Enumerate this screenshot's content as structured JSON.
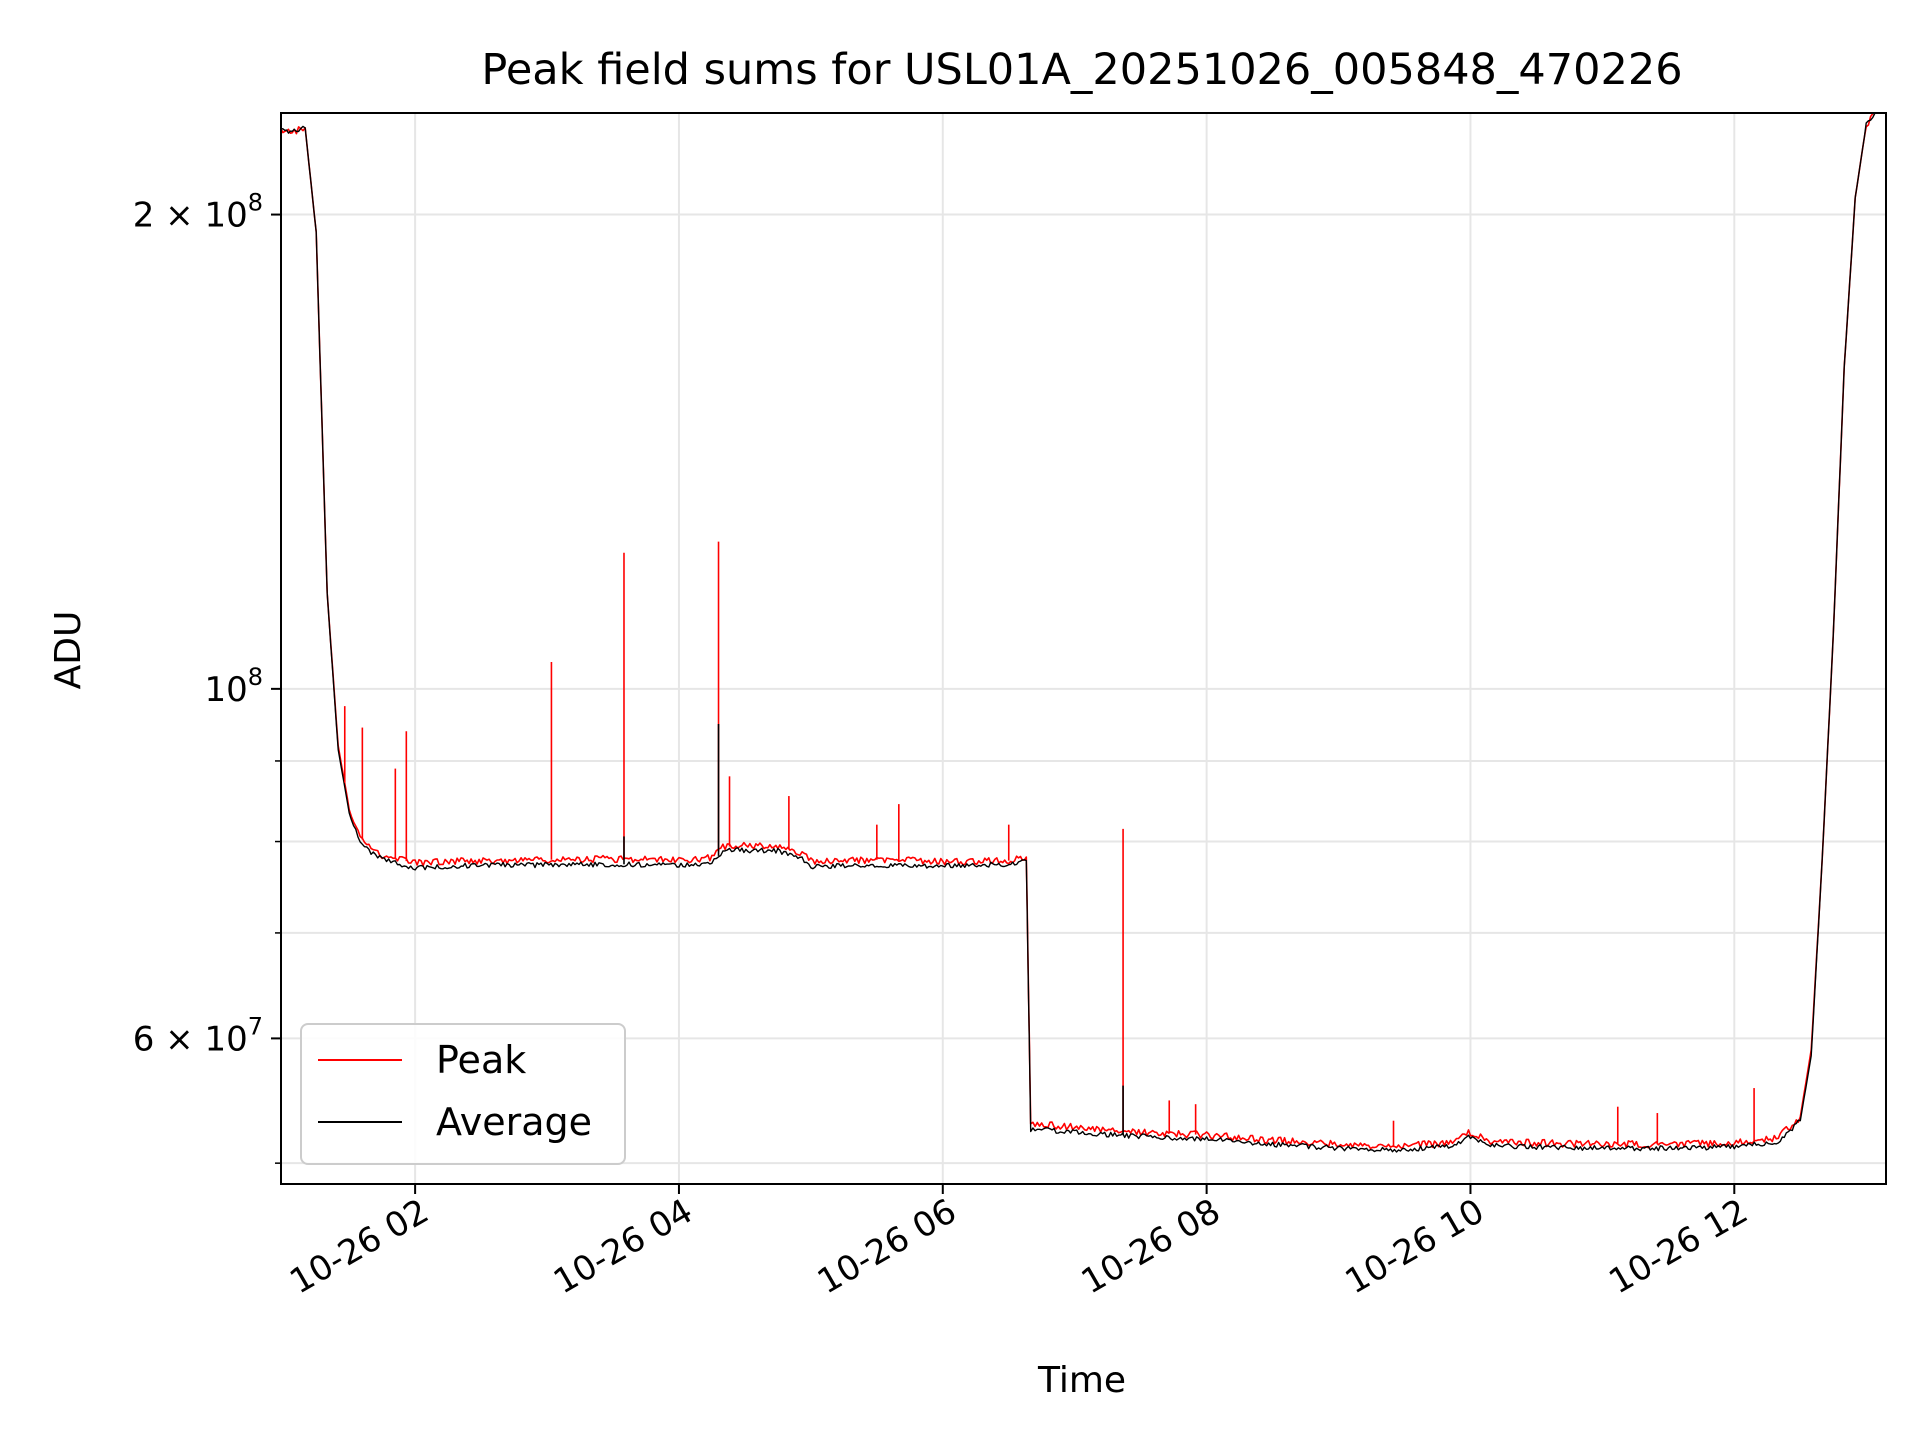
{
  "chart_data": {
    "type": "line",
    "title": "Peak field sums for USL01A_20251026_005848_470226",
    "xlabel": "Time",
    "ylabel": "ADU",
    "x_axis": {
      "kind": "datetime",
      "range": [
        "2025-10-26 00:59",
        "2025-10-26 13:09"
      ],
      "tick_format": "MM-DD HH"
    },
    "y_axis": {
      "scale": "log",
      "range": [
        48500000,
        232000000
      ]
    },
    "x_ticks": [
      {
        "value": "2025-10-26 02:00",
        "label": "10-26 02"
      },
      {
        "value": "2025-10-26 04:00",
        "label": "10-26 04"
      },
      {
        "value": "2025-10-26 06:00",
        "label": "10-26 06"
      },
      {
        "value": "2025-10-26 08:00",
        "label": "10-26 08"
      },
      {
        "value": "2025-10-26 10:00",
        "label": "10-26 10"
      },
      {
        "value": "2025-10-26 12:00",
        "label": "10-26 12"
      }
    ],
    "y_major_ticks": [
      {
        "value": 60000000,
        "mantissa": "6",
        "exponent": "7"
      },
      {
        "value": 100000000,
        "mantissa": "",
        "exponent": "8"
      },
      {
        "value": 200000000,
        "mantissa": "2",
        "exponent": "8"
      }
    ],
    "y_minor_ticks": [
      50000000,
      70000000,
      80000000,
      90000000
    ],
    "grid": true,
    "legend_position": "lower-left",
    "colors": {
      "Peak": "#ff0000",
      "Average": "#000000",
      "grid": "#e6e6e6"
    },
    "series": [
      {
        "name": "Peak",
        "color": "#ff0000",
        "x": [
          "2025-10-26 00:59",
          "2025-10-26 01:05",
          "2025-10-26 01:10",
          "2025-10-26 01:15",
          "2025-10-26 01:20",
          "2025-10-26 01:25",
          "2025-10-26 01:30",
          "2025-10-26 01:35",
          "2025-10-26 01:40",
          "2025-10-26 01:45",
          "2025-10-26 01:50",
          "2025-10-26 01:55",
          "2025-10-26 02:00",
          "2025-10-26 02:30",
          "2025-10-26 03:00",
          "2025-10-26 03:30",
          "2025-10-26 04:00",
          "2025-10-26 04:15",
          "2025-10-26 04:20",
          "2025-10-26 04:25",
          "2025-10-26 04:45",
          "2025-10-26 04:55",
          "2025-10-26 05:00",
          "2025-10-26 05:30",
          "2025-10-26 06:00",
          "2025-10-26 06:30",
          "2025-10-26 06:38",
          "2025-10-26 06:40",
          "2025-10-26 06:45",
          "2025-10-26 07:00",
          "2025-10-26 07:30",
          "2025-10-26 08:00",
          "2025-10-26 08:30",
          "2025-10-26 09:00",
          "2025-10-26 09:10",
          "2025-10-26 09:30",
          "2025-10-26 09:50",
          "2025-10-26 10:00",
          "2025-10-26 10:10",
          "2025-10-26 10:30",
          "2025-10-26 11:00",
          "2025-10-26 11:30",
          "2025-10-26 12:00",
          "2025-10-26 12:20",
          "2025-10-26 12:30",
          "2025-10-26 12:35",
          "2025-10-26 12:40",
          "2025-10-26 12:45",
          "2025-10-26 12:50",
          "2025-10-26 12:55",
          "2025-10-26 13:00",
          "2025-10-26 13:04"
        ],
        "values": [
          226000000,
          226000000,
          227000000,
          195000000,
          115000000,
          92000000,
          84000000,
          80500000,
          79200000,
          78400000,
          78000000,
          77800000,
          77500000,
          77800000,
          77900000,
          78000000,
          77900000,
          78100000,
          79300000,
          79500000,
          79400000,
          78800000,
          77700000,
          77900000,
          77700000,
          77800000,
          78200000,
          52800000,
          52900000,
          52700000,
          52300000,
          52100000,
          51700000,
          51400000,
          51300000,
          51300000,
          51500000,
          52300000,
          51600000,
          51500000,
          51400000,
          51400000,
          51500000,
          51900000,
          53500000,
          59000000,
          78000000,
          108000000,
          160000000,
          205000000,
          228000000,
          232000000
        ]
      },
      {
        "name": "Average",
        "color": "#000000",
        "x": [
          "2025-10-26 00:59",
          "2025-10-26 01:05",
          "2025-10-26 01:10",
          "2025-10-26 01:15",
          "2025-10-26 01:20",
          "2025-10-26 01:25",
          "2025-10-26 01:30",
          "2025-10-26 01:35",
          "2025-10-26 01:40",
          "2025-10-26 01:45",
          "2025-10-26 01:50",
          "2025-10-26 01:55",
          "2025-10-26 02:00",
          "2025-10-26 02:30",
          "2025-10-26 03:00",
          "2025-10-26 03:30",
          "2025-10-26 04:00",
          "2025-10-26 04:15",
          "2025-10-26 04:20",
          "2025-10-26 04:25",
          "2025-10-26 04:45",
          "2025-10-26 04:55",
          "2025-10-26 05:00",
          "2025-10-26 05:30",
          "2025-10-26 06:00",
          "2025-10-26 06:30",
          "2025-10-26 06:38",
          "2025-10-26 06:40",
          "2025-10-26 06:45",
          "2025-10-26 07:00",
          "2025-10-26 07:30",
          "2025-10-26 08:00",
          "2025-10-26 08:30",
          "2025-10-26 09:00",
          "2025-10-26 09:10",
          "2025-10-26 09:30",
          "2025-10-26 09:50",
          "2025-10-26 10:00",
          "2025-10-26 10:10",
          "2025-10-26 10:30",
          "2025-10-26 11:00",
          "2025-10-26 11:30",
          "2025-10-26 12:00",
          "2025-10-26 12:20",
          "2025-10-26 12:30",
          "2025-10-26 12:35",
          "2025-10-26 12:40",
          "2025-10-26 12:45",
          "2025-10-26 12:50",
          "2025-10-26 12:55",
          "2025-10-26 13:00",
          "2025-10-26 13:04"
        ],
        "values": [
          226000000,
          226000000,
          227000000,
          195000000,
          115000000,
          91500000,
          83500000,
          80000000,
          78700000,
          78000000,
          77600000,
          77300000,
          77000000,
          77300000,
          77300000,
          77400000,
          77300000,
          77500000,
          78900000,
          79000000,
          78900000,
          78200000,
          77100000,
          77300000,
          77200000,
          77400000,
          77800000,
          52500000,
          52500000,
          52300000,
          52000000,
          51800000,
          51400000,
          51100000,
          51000000,
          51000000,
          51200000,
          52000000,
          51300000,
          51200000,
          51100000,
          51100000,
          51200000,
          51600000,
          53200000,
          58500000,
          78000000,
          108000000,
          160000000,
          205000000,
          228000000,
          232000000
        ]
      }
    ],
    "spikes": {
      "Peak": [
        {
          "x": "2025-10-26 01:28",
          "value": 97500000
        },
        {
          "x": "2025-10-26 01:36",
          "value": 94500000
        },
        {
          "x": "2025-10-26 01:51",
          "value": 89000000
        },
        {
          "x": "2025-10-26 01:56",
          "value": 94000000
        },
        {
          "x": "2025-10-26 03:02",
          "value": 104000000
        },
        {
          "x": "2025-10-26 03:35",
          "value": 122000000
        },
        {
          "x": "2025-10-26 04:18",
          "value": 124000000
        },
        {
          "x": "2025-10-26 04:23",
          "value": 88000000
        },
        {
          "x": "2025-10-26 04:50",
          "value": 85500000
        },
        {
          "x": "2025-10-26 05:30",
          "value": 82000000
        },
        {
          "x": "2025-10-26 05:40",
          "value": 84500000
        },
        {
          "x": "2025-10-26 06:30",
          "value": 82000000
        },
        {
          "x": "2025-10-26 07:22",
          "value": 81500000
        },
        {
          "x": "2025-10-26 07:43",
          "value": 54800000
        },
        {
          "x": "2025-10-26 07:55",
          "value": 54500000
        },
        {
          "x": "2025-10-26 09:25",
          "value": 53200000
        },
        {
          "x": "2025-10-26 11:07",
          "value": 54300000
        },
        {
          "x": "2025-10-26 11:25",
          "value": 53800000
        },
        {
          "x": "2025-10-26 12:09",
          "value": 55800000
        }
      ],
      "Average": [
        {
          "x": "2025-10-26 03:35",
          "value": 80600000
        },
        {
          "x": "2025-10-26 04:18",
          "value": 95000000
        },
        {
          "x": "2025-10-26 07:22",
          "value": 56000000
        }
      ]
    }
  }
}
